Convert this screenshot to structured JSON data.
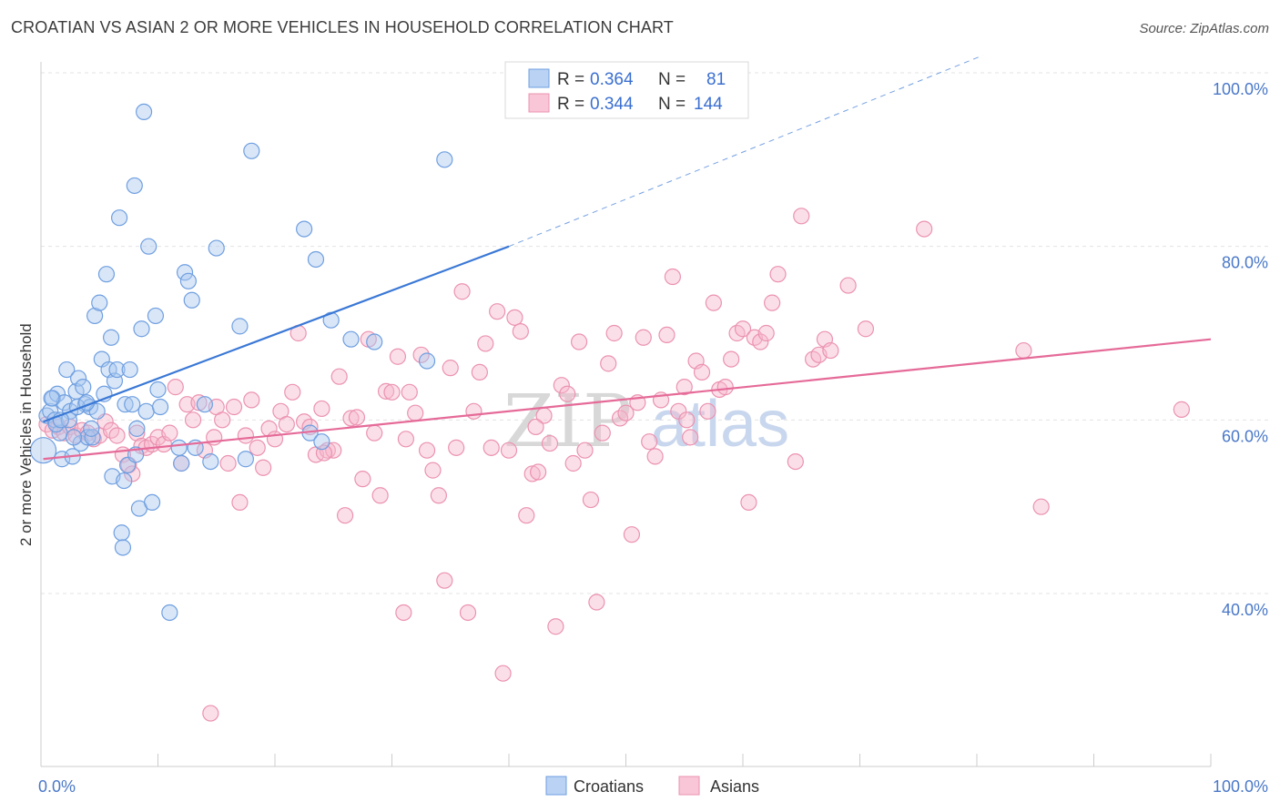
{
  "title": "CROATIAN VS ASIAN 2 OR MORE VEHICLES IN HOUSEHOLD CORRELATION CHART",
  "source": "Source: ZipAtlas.com",
  "watermark": {
    "zip": "ZIP",
    "atlas": "atlas"
  },
  "colors": {
    "croatians_fill": "#a9c7f0",
    "croatians_stroke": "#6f9fe0",
    "croatians_line": "#3a78d6",
    "asians_fill": "#f6b8cc",
    "asians_stroke": "#eb92b0",
    "asians_line": "#e56a98",
    "tick": "#4a78c8"
  },
  "legend": {
    "rows": [
      {
        "r_label": "R = ",
        "r_value": "0.364",
        "n_label": "N = ",
        "n_value": "81"
      },
      {
        "r_label": "R = ",
        "r_value": "0.344",
        "n_label": "N = ",
        "n_value": "144"
      }
    ],
    "placement": "top-center"
  },
  "chart_data": {
    "type": "scatter",
    "title": "CROATIAN VS ASIAN 2 OR MORE VEHICLES IN HOUSEHOLD CORRELATION CHART",
    "xlabel": "",
    "ylabel": "2 or more Vehicles in Household",
    "xlim": [
      0,
      100
    ],
    "ylim": [
      20,
      102
    ],
    "x_tick_labels": [
      "0.0%",
      "100.0%"
    ],
    "y_ticks": [
      100,
      80,
      60,
      40
    ],
    "y_tick_labels": [
      "100.0%",
      "80.0%",
      "60.0%",
      "40.0%"
    ],
    "grid": true,
    "legend_entries": [
      "Croatians",
      "Asians"
    ],
    "series": [
      {
        "name": "Croatians",
        "trend": {
          "x": [
            0.2,
            40
          ],
          "y": [
            59.8,
            80.0
          ],
          "dashed_to": [
            80.5,
            102
          ]
        },
        "points": [
          [
            0.2,
            56.5
          ],
          [
            0.5,
            60.5
          ],
          [
            0.8,
            61
          ],
          [
            1.0,
            62.5
          ],
          [
            1.2,
            60
          ],
          [
            1.4,
            63
          ],
          [
            1.6,
            58.5
          ],
          [
            1.8,
            55.5
          ],
          [
            2.0,
            62
          ],
          [
            2.2,
            65.8
          ],
          [
            2.5,
            61
          ],
          [
            2.7,
            55.8
          ],
          [
            3.0,
            63.3
          ],
          [
            3.2,
            64.8
          ],
          [
            3.4,
            57.3
          ],
          [
            3.6,
            63.8
          ],
          [
            3.8,
            61.8
          ],
          [
            4.0,
            58
          ],
          [
            4.2,
            61.5
          ],
          [
            4.4,
            58
          ],
          [
            4.6,
            72
          ],
          [
            4.8,
            61
          ],
          [
            5.0,
            73.5
          ],
          [
            5.2,
            67
          ],
          [
            5.4,
            63
          ],
          [
            5.6,
            76.8
          ],
          [
            5.8,
            65.8
          ],
          [
            6.0,
            69.5
          ],
          [
            6.3,
            64.5
          ],
          [
            6.5,
            65.8
          ],
          [
            6.7,
            83.3
          ],
          [
            6.9,
            47
          ],
          [
            7.0,
            45.3
          ],
          [
            7.2,
            61.8
          ],
          [
            7.4,
            54.8
          ],
          [
            7.6,
            65.8
          ],
          [
            7.8,
            61.8
          ],
          [
            8.0,
            87
          ],
          [
            8.2,
            59
          ],
          [
            8.4,
            49.8
          ],
          [
            8.6,
            70.5
          ],
          [
            8.8,
            95.5
          ],
          [
            9.0,
            61
          ],
          [
            9.2,
            80
          ],
          [
            9.5,
            50.5
          ],
          [
            9.8,
            72
          ],
          [
            10.0,
            63.5
          ],
          [
            10.2,
            61.5
          ],
          [
            11.0,
            37.8
          ],
          [
            11.8,
            56.8
          ],
          [
            12.0,
            55
          ],
          [
            12.3,
            77
          ],
          [
            12.6,
            76
          ],
          [
            12.9,
            73.8
          ],
          [
            13.2,
            56.8
          ],
          [
            14.0,
            61.8
          ],
          [
            14.5,
            55.2
          ],
          [
            15.0,
            79.8
          ],
          [
            17.0,
            70.8
          ],
          [
            17.5,
            55.5
          ],
          [
            18.0,
            91
          ],
          [
            22.5,
            82
          ],
          [
            23.0,
            58.5
          ],
          [
            23.5,
            78.5
          ],
          [
            24.0,
            57.5
          ],
          [
            24.8,
            71.5
          ],
          [
            26.5,
            69.3
          ],
          [
            28.5,
            69
          ],
          [
            33.0,
            66.8
          ],
          [
            34.5,
            90
          ],
          [
            1.3,
            59.5
          ],
          [
            2.4,
            60
          ],
          [
            3.1,
            61.5
          ],
          [
            3.9,
            62
          ],
          [
            0.9,
            62.5
          ],
          [
            1.7,
            60
          ],
          [
            2.8,
            58
          ],
          [
            6.1,
            53.5
          ],
          [
            7.1,
            53
          ],
          [
            4.3,
            59
          ],
          [
            8.1,
            56
          ]
        ]
      },
      {
        "name": "Asians",
        "trend": {
          "x": [
            0.2,
            100
          ],
          "y": [
            55.5,
            69.3
          ]
        },
        "points": [
          [
            0.5,
            59.5
          ],
          [
            1.0,
            58.8
          ],
          [
            1.5,
            59.2
          ],
          [
            2.0,
            58.5
          ],
          [
            2.5,
            59.2
          ],
          [
            3.0,
            58.2
          ],
          [
            3.5,
            58.8
          ],
          [
            4.0,
            58.5
          ],
          [
            4.5,
            57.8
          ],
          [
            5.0,
            58.2
          ],
          [
            5.5,
            59.8
          ],
          [
            6.0,
            58.8
          ],
          [
            6.5,
            58.2
          ],
          [
            7.0,
            56
          ],
          [
            7.5,
            54.8
          ],
          [
            7.8,
            53.8
          ],
          [
            8.2,
            58.5
          ],
          [
            8.6,
            57
          ],
          [
            9.0,
            56.8
          ],
          [
            9.5,
            57.2
          ],
          [
            10.0,
            58
          ],
          [
            10.5,
            57.2
          ],
          [
            11.0,
            58.5
          ],
          [
            11.5,
            63.8
          ],
          [
            12.0,
            55
          ],
          [
            12.5,
            61.8
          ],
          [
            13.0,
            60
          ],
          [
            13.5,
            62
          ],
          [
            14.0,
            56.5
          ],
          [
            14.5,
            26.2
          ],
          [
            15.0,
            61.5
          ],
          [
            15.5,
            60
          ],
          [
            16.0,
            55
          ],
          [
            16.5,
            61.5
          ],
          [
            17.0,
            50.5
          ],
          [
            17.5,
            58.2
          ],
          [
            18.0,
            62.3
          ],
          [
            18.5,
            56.8
          ],
          [
            19.0,
            54.5
          ],
          [
            19.5,
            59
          ],
          [
            20.0,
            57.8
          ],
          [
            20.5,
            61
          ],
          [
            21.0,
            59.5
          ],
          [
            21.5,
            63.2
          ],
          [
            22.0,
            70
          ],
          [
            22.5,
            59.8
          ],
          [
            23.0,
            59.2
          ],
          [
            23.5,
            56
          ],
          [
            24.0,
            61.3
          ],
          [
            24.5,
            56.5
          ],
          [
            25.0,
            56.5
          ],
          [
            25.5,
            65
          ],
          [
            26.0,
            49
          ],
          [
            26.5,
            60.2
          ],
          [
            27.0,
            60.3
          ],
          [
            27.5,
            53.2
          ],
          [
            28.0,
            69.3
          ],
          [
            28.5,
            58.5
          ],
          [
            29.0,
            51.3
          ],
          [
            29.5,
            63.3
          ],
          [
            30.0,
            63.2
          ],
          [
            30.5,
            67.3
          ],
          [
            31.0,
            37.8
          ],
          [
            31.5,
            63.2
          ],
          [
            32.0,
            60.8
          ],
          [
            32.5,
            67.5
          ],
          [
            33.0,
            56.5
          ],
          [
            33.5,
            54.2
          ],
          [
            34.0,
            51.3
          ],
          [
            34.5,
            41.5
          ],
          [
            35.0,
            66
          ],
          [
            35.5,
            56.8
          ],
          [
            36.0,
            74.8
          ],
          [
            36.5,
            37.8
          ],
          [
            37.0,
            61
          ],
          [
            37.5,
            65.5
          ],
          [
            38.0,
            68.8
          ],
          [
            38.5,
            56.8
          ],
          [
            39.0,
            72.5
          ],
          [
            39.5,
            30.8
          ],
          [
            40.0,
            56.5
          ],
          [
            40.5,
            71.8
          ],
          [
            41.0,
            70.2
          ],
          [
            41.5,
            49
          ],
          [
            42.0,
            53.8
          ],
          [
            42.5,
            54
          ],
          [
            43.0,
            60.5
          ],
          [
            43.5,
            57.3
          ],
          [
            44.0,
            36.2
          ],
          [
            44.5,
            64
          ],
          [
            45.0,
            63
          ],
          [
            45.5,
            55
          ],
          [
            46.0,
            69
          ],
          [
            46.5,
            56.5
          ],
          [
            47.0,
            50.8
          ],
          [
            47.5,
            39
          ],
          [
            48.0,
            58.5
          ],
          [
            48.5,
            66.5
          ],
          [
            49.0,
            70
          ],
          [
            49.5,
            60.2
          ],
          [
            50.0,
            60.8
          ],
          [
            50.5,
            46.8
          ],
          [
            51.0,
            62
          ],
          [
            51.5,
            69.5
          ],
          [
            52.0,
            57.5
          ],
          [
            52.5,
            55.8
          ],
          [
            53.0,
            62.3
          ],
          [
            53.5,
            69.8
          ],
          [
            54.0,
            76.5
          ],
          [
            54.5,
            61
          ],
          [
            55.0,
            63.8
          ],
          [
            55.5,
            58
          ],
          [
            56.0,
            66.8
          ],
          [
            56.5,
            65.5
          ],
          [
            57.0,
            61
          ],
          [
            57.5,
            73.5
          ],
          [
            58.0,
            63.5
          ],
          [
            58.5,
            63.8
          ],
          [
            59.0,
            67
          ],
          [
            59.5,
            70
          ],
          [
            60.0,
            70.5
          ],
          [
            60.5,
            50.5
          ],
          [
            61.0,
            69.5
          ],
          [
            61.5,
            69
          ],
          [
            62.0,
            70
          ],
          [
            62.5,
            73.5
          ],
          [
            63.0,
            76.8
          ],
          [
            64.5,
            55.2
          ],
          [
            65.0,
            83.5
          ],
          [
            66.0,
            67
          ],
          [
            66.5,
            67.5
          ],
          [
            67.0,
            69.3
          ],
          [
            67.5,
            68
          ],
          [
            69.0,
            75.5
          ],
          [
            70.5,
            70.5
          ],
          [
            75.5,
            82
          ],
          [
            84.0,
            68
          ],
          [
            85.5,
            50
          ],
          [
            97.5,
            61.2
          ],
          [
            14.8,
            58
          ],
          [
            24.2,
            56.2
          ],
          [
            31.2,
            57.8
          ],
          [
            42.3,
            59.2
          ],
          [
            55.2,
            60
          ]
        ]
      }
    ]
  },
  "bottom_legend": [
    {
      "label": "Croatians"
    },
    {
      "label": "Asians"
    }
  ]
}
